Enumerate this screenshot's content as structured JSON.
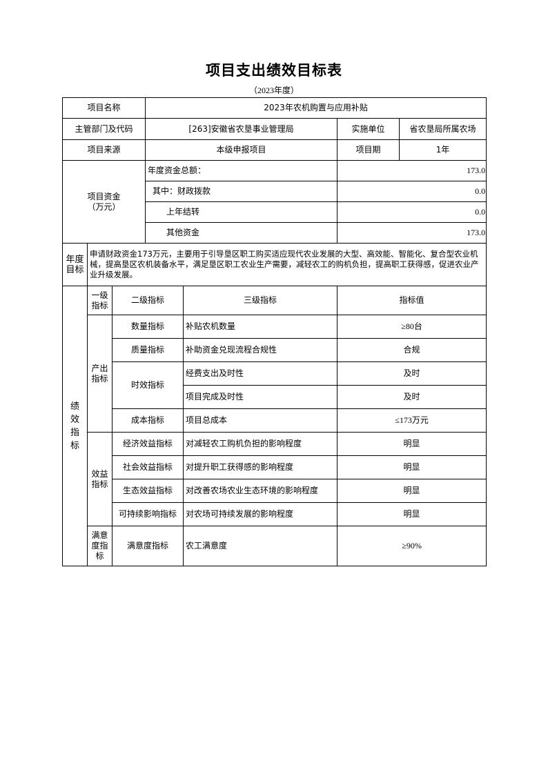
{
  "title": "项目支出绩效目标表",
  "year": "（2023年度）",
  "info": {
    "name_label": "项目名称",
    "name_value": "2023年农机购置与应用补贴",
    "dept_label": "主管部门及代码",
    "dept_value": "[263]安徽省农垦事业管理局",
    "impl_label": "实施单位",
    "impl_value": "省农垦局所属农场",
    "source_label": "项目来源",
    "source_value": "本级申报项目",
    "period_label": "项目期",
    "period_value": "1年"
  },
  "funds": {
    "label": "项目资金（万元）",
    "label1": "项目资金",
    "label2": "（万元）",
    "rows": [
      {
        "label": "年度资金总额：",
        "value": "173.0"
      },
      {
        "label": "其中：财政拨款",
        "value": "0.0"
      },
      {
        "label": "上年结转",
        "value": "0.0"
      },
      {
        "label": "其他资金",
        "value": "173.0"
      }
    ]
  },
  "goal": {
    "label1": "年度",
    "label2": "目标",
    "text": "申请财政资金173万元，主要用于引导垦区职工购买适应现代农业发展的大型、高效能、智能化、复合型农业机械，提高垦区农机装备水平，满足垦区职工农业生产需要，减轻农工的购机负担，提高职工获得感，促进农业产业升级发展。"
  },
  "indicators": {
    "section": [
      "绩",
      "效",
      "指",
      "标"
    ],
    "headers": {
      "level1": "一级指标",
      "level2": "二级指标",
      "level3": "三级指标",
      "value": "指标值"
    },
    "output": "产出指标",
    "benefit": "效益指标",
    "satisfaction": "满意度指标",
    "rows": [
      {
        "level2": "数量指标",
        "level3": "补贴农机数量",
        "value": "≥80台"
      },
      {
        "level2": "质量指标",
        "level3": "补助资金兑现流程合规性",
        "value": "合规"
      },
      {
        "level2": "时效指标",
        "level3": "经费支出及时性",
        "value": "及时"
      },
      {
        "level3": "项目完成及时性",
        "value": "及时"
      },
      {
        "level2": "成本指标",
        "level3": "项目总成本",
        "value": "≤173万元"
      },
      {
        "level2": "经济效益指标",
        "level3": "对减轻农工购机负担的影响程度",
        "value": "明显"
      },
      {
        "level2": "社会效益指标",
        "level3": "对提升职工获得感的影响程度",
        "value": "明显"
      },
      {
        "level2": "生态效益指标",
        "level3": "对改善农场农业生态环境的影响程度",
        "value": "明显"
      },
      {
        "level2": "可持续影响指标",
        "level3": "对农场可持续发展的影响程度",
        "value": "明显"
      },
      {
        "level2": "满意度指标",
        "level3": "农工满意度",
        "value": "≥90%"
      }
    ]
  }
}
